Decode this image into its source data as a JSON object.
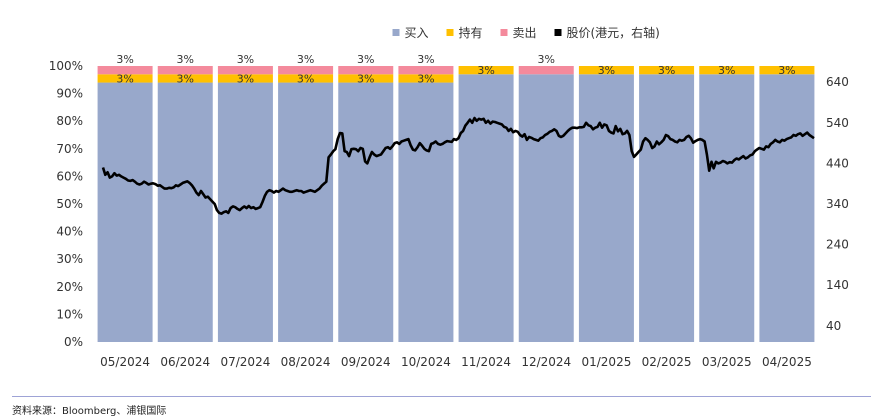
{
  "chart_data": {
    "type": "bar",
    "stacked": true,
    "categories": [
      "05/2024",
      "06/2024",
      "07/2024",
      "08/2024",
      "09/2024",
      "10/2024",
      "11/2024",
      "12/2024",
      "01/2025",
      "02/2025",
      "03/2025",
      "04/2025"
    ],
    "series": [
      {
        "name": "买入",
        "color": "#98a8cb",
        "values": [
          94,
          94,
          94,
          94,
          94,
          94,
          97,
          97,
          97,
          97,
          97,
          97
        ]
      },
      {
        "name": "持有",
        "color": "#ffc000",
        "values": [
          3,
          3,
          3,
          3,
          3,
          3,
          3,
          0,
          3,
          3,
          3,
          3
        ]
      },
      {
        "name": "卖出",
        "color": "#f48a9c",
        "values": [
          3,
          3,
          3,
          3,
          3,
          3,
          0,
          3,
          0,
          0,
          0,
          0
        ]
      }
    ],
    "bar_labels": {
      "持有": [
        "3%",
        "3%",
        "3%",
        "3%",
        "3%",
        "3%",
        "3%",
        "",
        "3%",
        "3%",
        "3%",
        "3%"
      ],
      "卖出": [
        "3%",
        "3%",
        "3%",
        "3%",
        "3%",
        "3%",
        "",
        "3%",
        "",
        "",
        "",
        ""
      ]
    },
    "line": {
      "name": "股价(港元，右轴)",
      "color": "#000000",
      "axis": "right",
      "values": [
        430,
        412,
        418,
        405,
        408,
        416,
        410,
        412,
        408,
        405,
        402,
        398,
        397,
        399,
        395,
        390,
        388,
        390,
        395,
        392,
        388,
        390,
        391,
        389,
        385,
        386,
        382,
        378,
        378,
        380,
        379,
        381,
        386,
        384,
        388,
        392,
        394,
        396,
        392,
        386,
        378,
        368,
        362,
        372,
        364,
        356,
        358,
        352,
        346,
        340,
        325,
        318,
        316,
        320,
        322,
        318,
        330,
        334,
        332,
        328,
        325,
        330,
        334,
        330,
        335,
        330,
        332,
        328,
        330,
        332,
        345,
        360,
        370,
        374,
        372,
        368,
        372,
        370,
        374,
        378,
        374,
        372,
        370,
        370,
        372,
        374,
        372,
        372,
        368,
        370,
        372,
        374,
        372,
        370,
        374,
        378,
        385,
        390,
        395,
        455,
        462,
        470,
        475,
        500,
        515,
        514,
        470,
        468,
        458,
        475,
        476,
        475,
        470,
        478,
        476,
        445,
        440,
        455,
        468,
        462,
        458,
        460,
        462,
        470,
        478,
        480,
        476,
        482,
        490,
        492,
        488,
        494,
        496,
        498,
        500,
        485,
        474,
        472,
        480,
        490,
        484,
        476,
        472,
        470,
        488,
        490,
        494,
        488,
        486,
        488,
        492,
        495,
        494,
        493,
        500,
        498,
        502,
        515,
        520,
        533,
        540,
        548,
        540,
        552,
        545,
        550,
        548,
        550,
        540,
        545,
        538,
        543,
        542,
        540,
        538,
        536,
        530,
        528,
        520,
        525,
        517,
        520,
        518,
        510,
        506,
        512,
        498,
        505,
        503,
        500,
        498,
        496,
        502,
        504,
        510,
        513,
        518,
        520,
        524,
        520,
        508,
        505,
        508,
        514,
        520,
        525,
        528,
        528,
        527,
        529,
        529,
        530,
        540,
        534,
        532,
        524,
        528,
        530,
        540,
        528,
        536,
        534,
        520,
        516,
        514,
        532,
        519,
        525,
        512,
        514,
        520,
        510,
        470,
        456,
        462,
        468,
        474,
        494,
        502,
        498,
        492,
        478,
        482,
        494,
        487,
        492,
        498,
        510,
        507,
        500,
        498,
        494,
        492,
        498,
        496,
        498,
        505,
        508,
        502,
        491,
        495,
        498,
        500,
        498,
        494,
        462,
        422,
        444,
        428,
        444,
        440,
        442,
        446,
        444,
        440,
        443,
        442,
        448,
        452,
        450,
        454,
        458,
        452,
        455,
        460,
        462,
        470,
        474,
        478,
        476,
        474,
        482,
        480,
        488,
        492,
        498,
        494,
        492,
        498,
        496,
        500,
        502,
        504,
        510,
        508,
        512,
        514,
        508,
        512,
        516,
        510,
        506,
        502
      ]
    },
    "y_left": {
      "min": 0,
      "max": 100,
      "ticks": [
        "0%",
        "10%",
        "20%",
        "30%",
        "40%",
        "50%",
        "60%",
        "70%",
        "80%",
        "90%",
        "100%"
      ]
    },
    "y_right": {
      "min": 0,
      "max": 680,
      "ticks": [
        "40",
        "140",
        "240",
        "340",
        "440",
        "540",
        "640"
      ]
    },
    "source": "资料来源：Bloomberg、浦银国际"
  }
}
